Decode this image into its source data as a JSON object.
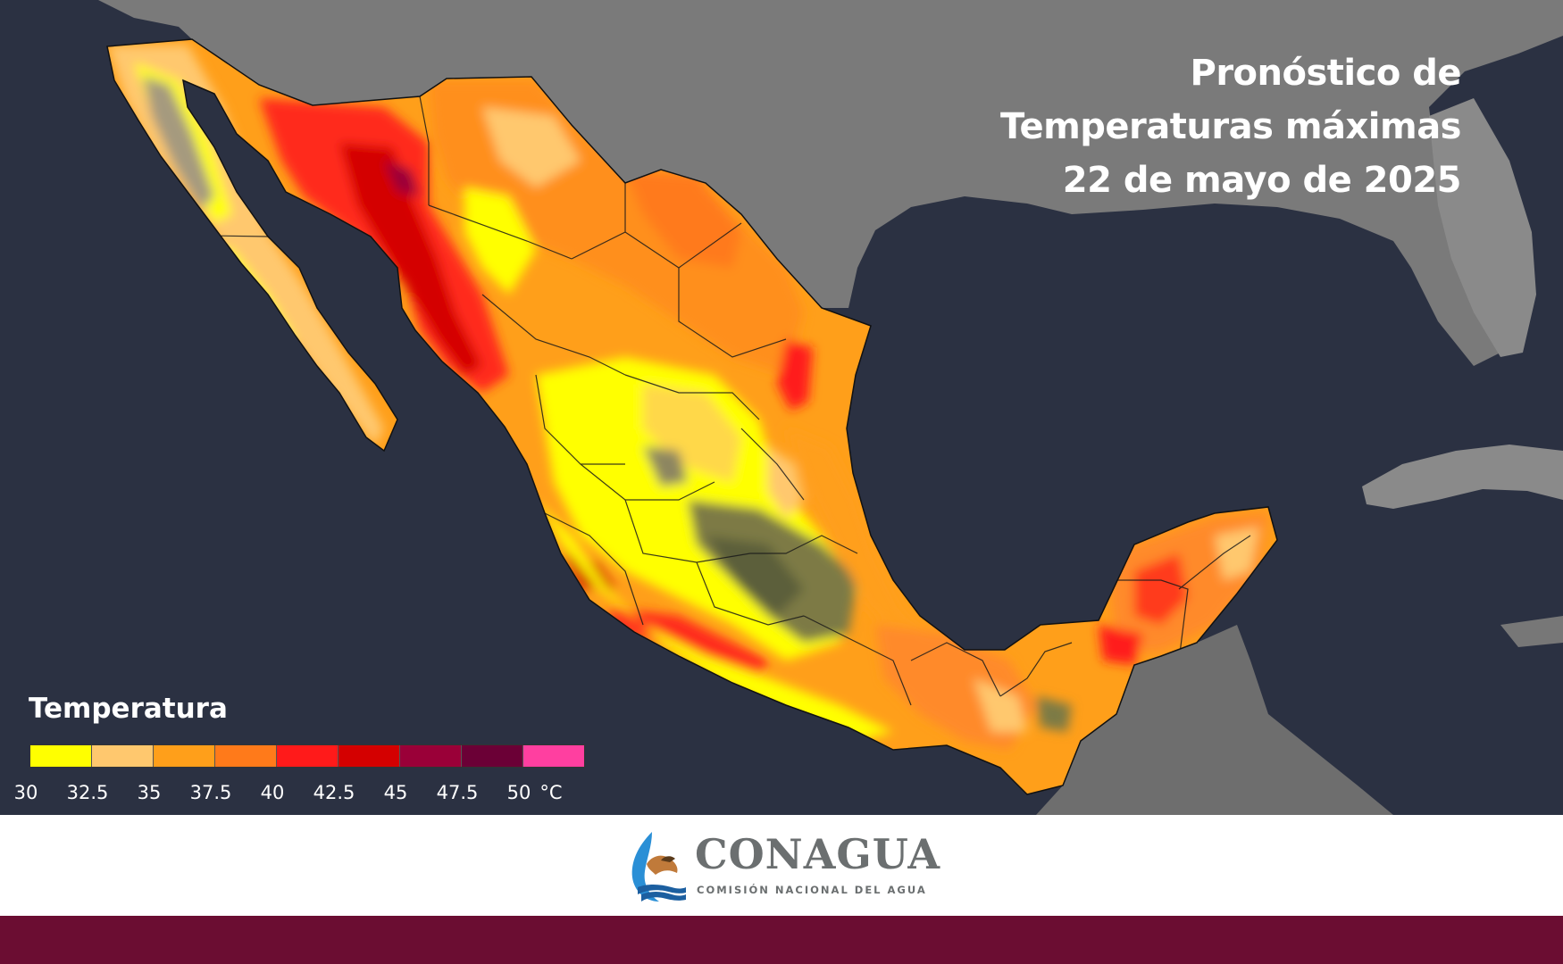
{
  "title": {
    "line1": "Pronóstico de",
    "line2": "Temperaturas máximas",
    "line3": "22 de mayo de 2025"
  },
  "legend": {
    "title": "Temperatura",
    "ticks": [
      "30",
      "32.5",
      "35",
      "37.5",
      "40",
      "42.5",
      "45",
      "47.5",
      "50",
      "°C"
    ],
    "colors": [
      "#ffff00",
      "#ffc86e",
      "#ff9f1a",
      "#ff7a1a",
      "#ff1a1a",
      "#d40000",
      "#9a0038",
      "#6b0036",
      "#ff3fa0"
    ]
  },
  "logo": {
    "name": "CONAGUA",
    "subtitle": "COMISIÓN NACIONAL DEL AGUA"
  },
  "colors": {
    "ocean": "#2b3142",
    "land_base": "#7d7d7d",
    "brand_footer": "#6b0d32",
    "logo_gray": "#6b6f70"
  }
}
